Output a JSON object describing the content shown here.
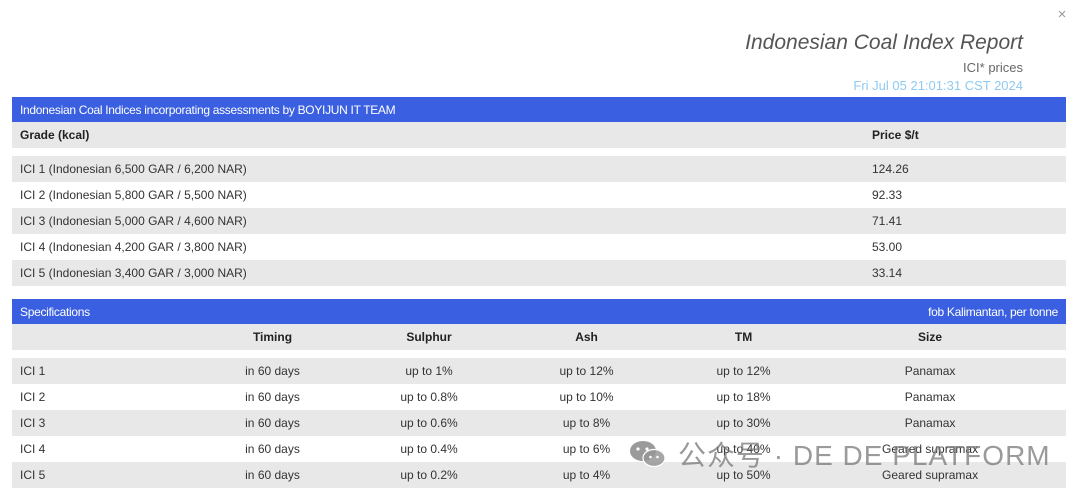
{
  "window": {
    "close_glyph": "×"
  },
  "header": {
    "title": "Indonesian Coal Index Report",
    "subtitle": "ICI* prices",
    "timestamp": "Fri Jul 05 21:01:31 CST 2024"
  },
  "prices": {
    "banner": "Indonesian Coal Indices incorporating assessments by BOYIJUN IT TEAM",
    "columns": [
      "Grade (kcal)",
      "Price $/t"
    ],
    "rows": [
      {
        "grade": "ICI 1 (Indonesian 6,500 GAR / 6,200 NAR)",
        "price": "124.26"
      },
      {
        "grade": "ICI 2 (Indonesian 5,800 GAR / 5,500 NAR)",
        "price": "92.33"
      },
      {
        "grade": "ICI 3 (Indonesian 5,000 GAR / 4,600 NAR)",
        "price": "71.41"
      },
      {
        "grade": "ICI 4 (Indonesian 4,200 GAR / 3,800 NAR)",
        "price": "53.00"
      },
      {
        "grade": "ICI 5 (Indonesian 3,400 GAR / 3,000 NAR)",
        "price": "33.14"
      }
    ]
  },
  "specs": {
    "banner_left": "Specifications",
    "banner_right": "fob Kalimantan, per tonne",
    "columns": [
      "",
      "Timing",
      "Sulphur",
      "Ash",
      "TM",
      "Size"
    ],
    "rows": [
      {
        "name": "ICI 1",
        "timing": "in 60 days",
        "sulphur": "up to 1%",
        "ash": "up to 12%",
        "tm": "up to 12%",
        "size": "Panamax"
      },
      {
        "name": "ICI 2",
        "timing": "in 60 days",
        "sulphur": "up to 0.8%",
        "ash": "up to 10%",
        "tm": "up to 18%",
        "size": "Panamax"
      },
      {
        "name": "ICI 3",
        "timing": "in 60 days",
        "sulphur": "up to 0.6%",
        "ash": "up to 8%",
        "tm": "up to 30%",
        "size": "Panamax"
      },
      {
        "name": "ICI 4",
        "timing": "in 60 days",
        "sulphur": "up to 0.4%",
        "ash": "up to 6%",
        "tm": "up to 40%",
        "size": "Geared supramax"
      },
      {
        "name": "ICI 5",
        "timing": "in 60 days",
        "sulphur": "up to 0.2%",
        "ash": "up to 4%",
        "tm": "up to 50%",
        "size": "Geared supramax"
      }
    ]
  },
  "watermark": {
    "text": "公众号 · DE DE PLATFORM",
    "icon": "wechat-icon"
  },
  "colors": {
    "banner": "#3a5fe0",
    "stripe": "#e8e8e8",
    "timestamp": "#8fcaf0"
  }
}
